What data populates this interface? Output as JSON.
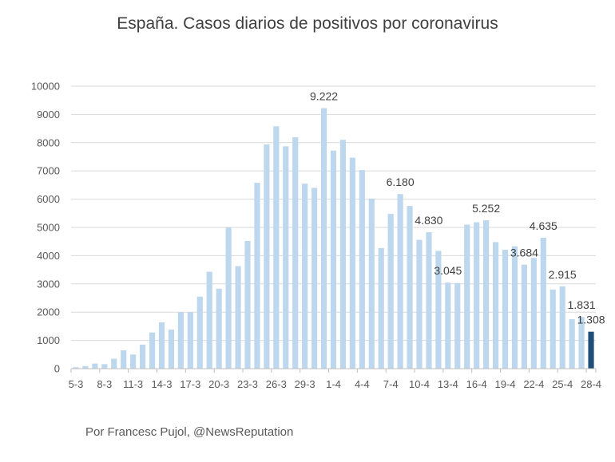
{
  "chart_data": {
    "type": "bar",
    "title": "España. Casos diarios de positivos por coronavirus",
    "footer": "Por Francesc Pujol, @NewsReputation",
    "ylim": [
      0,
      10000
    ],
    "yticks": [
      "0",
      "1000",
      "2000",
      "3000",
      "4000",
      "5000",
      "6000",
      "7000",
      "8000",
      "9000",
      "10000"
    ],
    "grid": true,
    "legend": "none",
    "colors": {
      "bar": "#bdd7ee",
      "highlight": "#1f4e79",
      "grid": "#d9d9d9",
      "axis": "#bfbfbf"
    },
    "categories": [
      "5-3",
      "6-3",
      "7-3",
      "8-3",
      "9-3",
      "10-3",
      "11-3",
      "12-3",
      "13-3",
      "14-3",
      "15-3",
      "16-3",
      "17-3",
      "18-3",
      "19-3",
      "20-3",
      "21-3",
      "22-3",
      "23-3",
      "24-3",
      "25-3",
      "26-3",
      "27-3",
      "28-3",
      "29-3",
      "30-3",
      "31-3",
      "1-4",
      "2-4",
      "3-4",
      "4-4",
      "5-4",
      "6-4",
      "7-4",
      "8-4",
      "9-4",
      "10-4",
      "11-4",
      "12-4",
      "13-4",
      "14-4",
      "15-4",
      "16-4",
      "17-4",
      "18-4",
      "19-4",
      "20-4",
      "21-4",
      "22-4",
      "23-4",
      "24-4",
      "25-4",
      "26-4",
      "27-4",
      "28-4"
    ],
    "xtick_labels": [
      "5-3",
      "8-3",
      "11-3",
      "14-3",
      "17-3",
      "20-3",
      "23-3",
      "26-3",
      "29-3",
      "1-4",
      "4-4",
      "7-4",
      "10-4",
      "13-4",
      "16-4",
      "19-4",
      "22-4",
      "25-4",
      "28-4"
    ],
    "values": [
      50,
      90,
      180,
      160,
      350,
      650,
      500,
      850,
      1280,
      1640,
      1380,
      2000,
      2000,
      2550,
      3430,
      2830,
      5000,
      3630,
      4520,
      6580,
      7940,
      8580,
      7870,
      8190,
      6550,
      6400,
      9222,
      7720,
      8100,
      7470,
      7030,
      6020,
      4270,
      5480,
      6180,
      5760,
      4560,
      4830,
      4170,
      3045,
      3030,
      5100,
      5180,
      5252,
      4480,
      4210,
      4330,
      3684,
      3920,
      4635,
      2800,
      2915,
      1750,
      1831,
      1308
    ],
    "highlight_index": 54,
    "data_labels": [
      {
        "index": 26,
        "text": "9.222"
      },
      {
        "index": 34,
        "text": "6.180"
      },
      {
        "index": 37,
        "text": "4.830"
      },
      {
        "index": 39,
        "text": "3.045"
      },
      {
        "index": 43,
        "text": "5.252"
      },
      {
        "index": 47,
        "text": "3.684"
      },
      {
        "index": 49,
        "text": "4.635"
      },
      {
        "index": 51,
        "text": "2.915"
      },
      {
        "index": 53,
        "text": "1.831"
      },
      {
        "index": 54,
        "text": "1.308"
      }
    ]
  }
}
